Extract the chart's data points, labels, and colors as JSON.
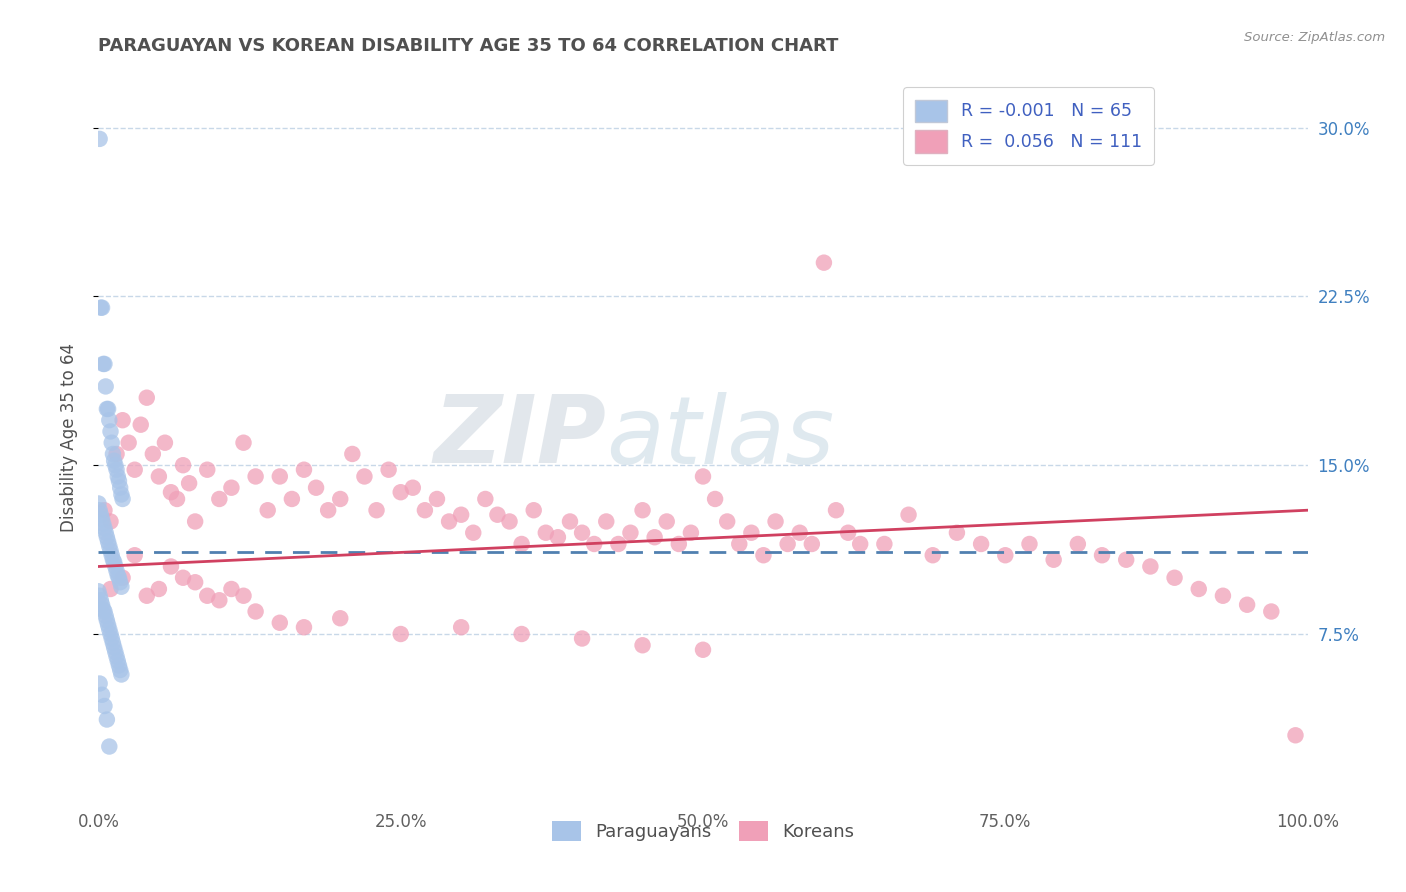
{
  "title": "PARAGUAYAN VS KOREAN DISABILITY AGE 35 TO 64 CORRELATION CHART",
  "source": "Source: ZipAtlas.com",
  "ylabel": "Disability Age 35 to 64",
  "xlim": [
    0.0,
    1.0
  ],
  "ylim": [
    0.0,
    0.325
  ],
  "xtick_vals": [
    0.0,
    0.25,
    0.5,
    0.75,
    1.0
  ],
  "xtick_labels": [
    "0.0%",
    "25.0%",
    "50.0%",
    "75.0%",
    "100.0%"
  ],
  "ytick_vals": [
    0.075,
    0.15,
    0.225,
    0.3
  ],
  "ytick_labels": [
    "7.5%",
    "15.0%",
    "22.5%",
    "30.0%"
  ],
  "paraguayan_color": "#a8c4e8",
  "korean_color": "#f0a0b8",
  "trend_paraguayan_color": "#5080b0",
  "trend_korean_color": "#d04060",
  "R_paraguayan": -0.001,
  "N_paraguayan": 65,
  "R_korean": 0.056,
  "N_korean": 111,
  "legend_R_color": "#d04060",
  "legend_N_color": "#4060c0",
  "title_color": "#505050",
  "right_ytick_color": "#4080c0",
  "background_color": "#ffffff",
  "grid_color": "#c8d8e8",
  "paraguayan_x": [
    0.001,
    0.002,
    0.003,
    0.004,
    0.005,
    0.006,
    0.007,
    0.008,
    0.009,
    0.01,
    0.011,
    0.012,
    0.013,
    0.014,
    0.015,
    0.016,
    0.017,
    0.018,
    0.019,
    0.02,
    0.0,
    0.001,
    0.002,
    0.003,
    0.004,
    0.005,
    0.006,
    0.007,
    0.008,
    0.009,
    0.01,
    0.011,
    0.012,
    0.013,
    0.014,
    0.015,
    0.016,
    0.017,
    0.018,
    0.019,
    0.0,
    0.001,
    0.002,
    0.003,
    0.004,
    0.005,
    0.006,
    0.007,
    0.008,
    0.009,
    0.01,
    0.011,
    0.012,
    0.013,
    0.014,
    0.015,
    0.016,
    0.017,
    0.018,
    0.019,
    0.001,
    0.003,
    0.005,
    0.007,
    0.009
  ],
  "paraguayan_y": [
    0.295,
    0.22,
    0.22,
    0.195,
    0.195,
    0.185,
    0.175,
    0.175,
    0.17,
    0.165,
    0.16,
    0.155,
    0.152,
    0.15,
    0.148,
    0.145,
    0.143,
    0.14,
    0.137,
    0.135,
    0.133,
    0.13,
    0.128,
    0.126,
    0.124,
    0.122,
    0.12,
    0.118,
    0.116,
    0.114,
    0.112,
    0.11,
    0.108,
    0.107,
    0.105,
    0.103,
    0.101,
    0.1,
    0.098,
    0.096,
    0.094,
    0.092,
    0.09,
    0.088,
    0.086,
    0.085,
    0.083,
    0.081,
    0.079,
    0.077,
    0.075,
    0.073,
    0.071,
    0.069,
    0.067,
    0.065,
    0.063,
    0.061,
    0.059,
    0.057,
    0.053,
    0.048,
    0.043,
    0.037,
    0.025
  ],
  "korean_x": [
    0.005,
    0.01,
    0.015,
    0.02,
    0.025,
    0.03,
    0.035,
    0.04,
    0.045,
    0.05,
    0.055,
    0.06,
    0.065,
    0.07,
    0.075,
    0.08,
    0.09,
    0.1,
    0.11,
    0.12,
    0.13,
    0.14,
    0.15,
    0.16,
    0.17,
    0.18,
    0.19,
    0.2,
    0.21,
    0.22,
    0.23,
    0.24,
    0.25,
    0.26,
    0.27,
    0.28,
    0.29,
    0.3,
    0.31,
    0.32,
    0.33,
    0.34,
    0.35,
    0.36,
    0.37,
    0.38,
    0.39,
    0.4,
    0.41,
    0.42,
    0.43,
    0.44,
    0.45,
    0.46,
    0.47,
    0.48,
    0.49,
    0.5,
    0.51,
    0.52,
    0.53,
    0.54,
    0.55,
    0.56,
    0.57,
    0.58,
    0.59,
    0.6,
    0.61,
    0.62,
    0.63,
    0.65,
    0.67,
    0.69,
    0.71,
    0.73,
    0.75,
    0.77,
    0.79,
    0.81,
    0.83,
    0.85,
    0.87,
    0.89,
    0.91,
    0.93,
    0.95,
    0.97,
    0.99,
    0.01,
    0.02,
    0.03,
    0.04,
    0.05,
    0.06,
    0.07,
    0.08,
    0.09,
    0.1,
    0.11,
    0.12,
    0.13,
    0.15,
    0.17,
    0.2,
    0.25,
    0.3,
    0.35,
    0.4,
    0.45,
    0.5
  ],
  "korean_y": [
    0.13,
    0.125,
    0.155,
    0.17,
    0.16,
    0.148,
    0.168,
    0.18,
    0.155,
    0.145,
    0.16,
    0.138,
    0.135,
    0.15,
    0.142,
    0.125,
    0.148,
    0.135,
    0.14,
    0.16,
    0.145,
    0.13,
    0.145,
    0.135,
    0.148,
    0.14,
    0.13,
    0.135,
    0.155,
    0.145,
    0.13,
    0.148,
    0.138,
    0.14,
    0.13,
    0.135,
    0.125,
    0.128,
    0.12,
    0.135,
    0.128,
    0.125,
    0.115,
    0.13,
    0.12,
    0.118,
    0.125,
    0.12,
    0.115,
    0.125,
    0.115,
    0.12,
    0.13,
    0.118,
    0.125,
    0.115,
    0.12,
    0.145,
    0.135,
    0.125,
    0.115,
    0.12,
    0.11,
    0.125,
    0.115,
    0.12,
    0.115,
    0.24,
    0.13,
    0.12,
    0.115,
    0.115,
    0.128,
    0.11,
    0.12,
    0.115,
    0.11,
    0.115,
    0.108,
    0.115,
    0.11,
    0.108,
    0.105,
    0.1,
    0.095,
    0.092,
    0.088,
    0.085,
    0.03,
    0.095,
    0.1,
    0.11,
    0.092,
    0.095,
    0.105,
    0.1,
    0.098,
    0.092,
    0.09,
    0.095,
    0.092,
    0.085,
    0.08,
    0.078,
    0.082,
    0.075,
    0.078,
    0.075,
    0.073,
    0.07,
    0.068
  ],
  "trend_p_x0": 0.0,
  "trend_p_x1": 1.0,
  "trend_p_y0": 0.1115,
  "trend_p_y1": 0.1115,
  "trend_k_x0": 0.0,
  "trend_k_x1": 1.0,
  "trend_k_y0": 0.105,
  "trend_k_y1": 0.13
}
